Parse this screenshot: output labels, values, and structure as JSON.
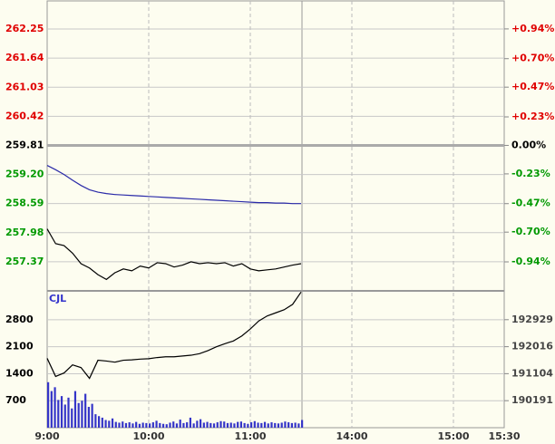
{
  "chart_data": [
    {
      "type": "line",
      "x": [
        0,
        5,
        10,
        15,
        20,
        25,
        30,
        35,
        40,
        45,
        50,
        55,
        60,
        65,
        70,
        75,
        80,
        85,
        90,
        95,
        100,
        105,
        110,
        115,
        120,
        125,
        130,
        135,
        140,
        145,
        150
      ],
      "xlim": [
        0,
        270
      ],
      "xticks": [
        {
          "value": 0,
          "label": "9:00"
        },
        {
          "value": 60,
          "label": "10:00"
        },
        {
          "value": 120,
          "label": "11:00"
        },
        {
          "value": 180,
          "label": "14:00"
        },
        {
          "value": 240,
          "label": "15:00"
        },
        {
          "value": 270,
          "label": "15:30"
        }
      ],
      "ylim": [
        256.76,
        262.84
      ],
      "yticks": [
        262.25,
        261.64,
        261.03,
        260.42,
        259.81,
        {
          "value": 259.2,
          "label": "259.20"
        },
        258.59,
        257.98,
        257.37
      ],
      "base": 259.81,
      "y2lim": [
        -1.174,
        1.166
      ],
      "y2ticks": [
        {
          "value": 0.94,
          "label": "+0.94%"
        },
        {
          "value": 0.7,
          "label": "+0.70%"
        },
        {
          "value": 0.47,
          "label": "+0.47%"
        },
        {
          "value": 0.23,
          "label": "+0.23%"
        },
        {
          "value": 0,
          "label": "0.00%"
        },
        {
          "value": -0.23,
          "label": "-0.23%"
        },
        {
          "value": -0.47,
          "label": "-0.47%"
        },
        {
          "value": -0.7,
          "label": "-0.70%"
        },
        {
          "value": -0.94,
          "label": "-0.94%"
        }
      ],
      "grid": true,
      "series": [
        {
          "color": "#000000",
          "values": [
            258.06,
            257.75,
            257.71,
            257.55,
            257.33,
            257.24,
            257.1,
            257.0,
            257.14,
            257.22,
            257.18,
            257.28,
            257.24,
            257.35,
            257.33,
            257.26,
            257.3,
            257.37,
            257.33,
            257.35,
            257.33,
            257.35,
            257.28,
            257.33,
            257.22,
            257.18,
            257.2,
            257.22,
            257.26,
            257.3,
            257.33
          ]
        },
        {
          "color": "#2a2aa8",
          "values": [
            259.39,
            259.3,
            259.2,
            259.08,
            258.97,
            258.88,
            258.83,
            258.8,
            258.78,
            258.77,
            258.76,
            258.75,
            258.74,
            258.73,
            258.72,
            258.71,
            258.7,
            258.69,
            258.68,
            258.67,
            258.66,
            258.65,
            258.64,
            258.63,
            258.62,
            258.61,
            258.61,
            258.6,
            258.6,
            258.59,
            258.59
          ]
        }
      ]
    },
    {
      "type": "bar",
      "title": "CJL",
      "xlim": [
        0,
        270
      ],
      "x": [
        0,
        2,
        4,
        6,
        8,
        10,
        12,
        14,
        16,
        18,
        20,
        22,
        24,
        26,
        28,
        30,
        32,
        34,
        36,
        38,
        40,
        42,
        44,
        46,
        48,
        50,
        52,
        54,
        56,
        58,
        60,
        62,
        64,
        66,
        68,
        70,
        72,
        74,
        76,
        78,
        80,
        82,
        84,
        86,
        88,
        90,
        92,
        94,
        96,
        98,
        100,
        102,
        104,
        106,
        108,
        110,
        112,
        114,
        116,
        118,
        120,
        122,
        124,
        126,
        128,
        130,
        132,
        134,
        136,
        138,
        140,
        142,
        144,
        146,
        148,
        150
      ],
      "values": [
        1180,
        950,
        1050,
        720,
        820,
        600,
        780,
        500,
        950,
        640,
        700,
        880,
        540,
        620,
        350,
        300,
        260,
        200,
        180,
        240,
        150,
        130,
        160,
        120,
        140,
        110,
        150,
        100,
        130,
        120,
        110,
        140,
        180,
        120,
        100,
        90,
        130,
        160,
        110,
        210,
        120,
        140,
        260,
        110,
        180,
        220,
        130,
        150,
        120,
        110,
        140,
        170,
        160,
        120,
        130,
        110,
        150,
        160,
        120,
        100,
        140,
        170,
        130,
        120,
        150,
        110,
        140,
        120,
        110,
        130,
        160,
        140,
        120,
        130,
        110,
        200
      ],
      "color": "#3535c8",
      "ylim": [
        0,
        3550
      ],
      "yticks": [
        2800,
        2100,
        1400,
        700
      ],
      "y2lim": [
        189278,
        193903
      ],
      "y2ticks": [
        192929,
        192016,
        191104,
        190191
      ],
      "grid": true,
      "line": {
        "color": "#000000",
        "x": [
          0,
          5,
          10,
          15,
          20,
          25,
          30,
          35,
          40,
          45,
          50,
          55,
          60,
          65,
          70,
          75,
          80,
          85,
          90,
          95,
          100,
          105,
          110,
          115,
          120,
          125,
          130,
          135,
          140,
          145,
          150
        ],
        "values": [
          1800,
          1330,
          1420,
          1630,
          1560,
          1280,
          1750,
          1730,
          1700,
          1750,
          1760,
          1780,
          1790,
          1820,
          1840,
          1840,
          1860,
          1880,
          1920,
          2000,
          2100,
          2180,
          2250,
          2380,
          2560,
          2770,
          2900,
          2980,
          3060,
          3200,
          3520
        ]
      }
    }
  ]
}
